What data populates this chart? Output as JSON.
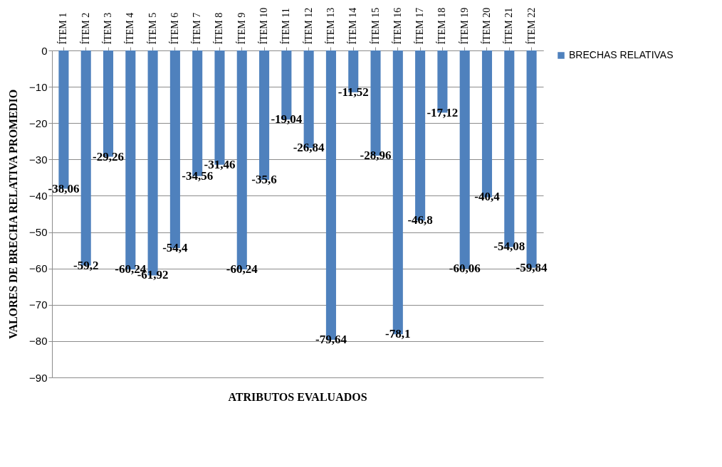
{
  "chart_data": {
    "type": "bar",
    "xlabel": "ATRIBUTOS EVALUADOS",
    "ylabel": "VALORES DE BRECHA RELATIVA PROMEDIO",
    "categories": [
      "ÍTEM 1",
      "ÍTEM 2",
      "ÍTEM 3",
      "ÍTEM 4",
      "ÍTEM 5",
      "ÍTEM 6",
      "ÍTEM 7",
      "ÍTEM 8",
      "ÍTEM 9",
      "ÍTEM 10",
      "ÍTEM 11",
      "ÍTEM 12",
      "ÍTEM 13",
      "ÍTEM 14",
      "ÍTEM 15",
      "ÍTEM 16",
      "ÍTEM 17",
      "ÍTEM 18",
      "ÍTEM 19",
      "ÍTEM 20",
      "ÍTEM 21",
      "ÍTEM 22"
    ],
    "series": [
      {
        "name": "BRECHAS RELATIVAS",
        "color": "#4f81bd",
        "values": [
          -38.06,
          -59.2,
          -29.26,
          -60.24,
          -61.92,
          -54.4,
          -34.56,
          -31.46,
          -60.24,
          -35.6,
          -19.04,
          -26.84,
          -79.64,
          -11.52,
          -28.96,
          -78.1,
          -46.8,
          -17.12,
          -60.06,
          -40.4,
          -54.08,
          -59.84
        ],
        "value_labels": [
          "-38,06",
          "-59,2",
          "-29,26",
          "-60,24",
          "-61,92",
          "-54,4",
          "-34,56",
          "-31,46",
          "-60,24",
          "-35,6",
          "-19,04",
          "-26,84",
          "-79,64",
          "-11,52",
          "-28,96",
          "-78,1",
          "-46,8",
          "-17,12",
          "-60,06",
          "-40,4",
          "-54,08",
          "-59,84"
        ]
      }
    ],
    "ylim": [
      -90,
      0
    ],
    "yticks": [
      -90,
      -80,
      -70,
      -60,
      -50,
      -40,
      -30,
      -20,
      -10,
      0
    ],
    "grid": "y",
    "legend": "right"
  }
}
